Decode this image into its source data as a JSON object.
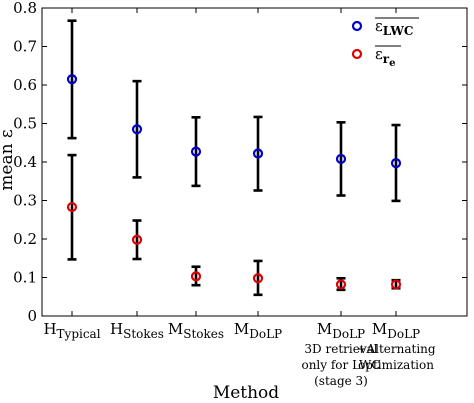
{
  "chart_data": {
    "type": "scatter",
    "title": "",
    "xlabel": "Method",
    "ylabel": "mean ε",
    "ylim": [
      0,
      0.8
    ],
    "yticks": [
      "0",
      "0.1",
      "0.2",
      "0.3",
      "0.4",
      "0.5",
      "0.6",
      "0.7",
      "0.8"
    ],
    "categories": [
      {
        "main": "H",
        "sub": "Typical",
        "note": []
      },
      {
        "main": "H",
        "sub": "Stokes",
        "note": []
      },
      {
        "main": "M",
        "sub": "Stokes",
        "note": []
      },
      {
        "main": "M",
        "sub": "DoLP",
        "note": []
      },
      {
        "main": "M",
        "sub": "DoLP",
        "note": [
          "3D retrieval",
          "only for LWC",
          "(stage 3)"
        ]
      },
      {
        "main": "M",
        "sub": "DoLP",
        "note": [
          "+Alternating",
          "optimization"
        ]
      }
    ],
    "series": [
      {
        "name": "ε̄ LWC",
        "legend_main": "ε",
        "legend_sub": "LWC",
        "color": "#0000cc",
        "values": [
          0.615,
          0.485,
          0.427,
          0.422,
          0.408,
          0.397
        ],
        "err_low": [
          0.462,
          0.36,
          0.338,
          0.326,
          0.313,
          0.299
        ],
        "err_high": [
          0.767,
          0.61,
          0.516,
          0.517,
          0.503,
          0.496
        ]
      },
      {
        "name": "ε̄ r_e",
        "legend_main": "ε",
        "legend_sub": "r",
        "legend_subsub": "e",
        "color": "#dd0000",
        "values": [
          0.283,
          0.198,
          0.103,
          0.098,
          0.082,
          0.082
        ],
        "err_low": [
          0.147,
          0.148,
          0.08,
          0.055,
          0.068,
          0.072
        ],
        "err_high": [
          0.418,
          0.248,
          0.128,
          0.143,
          0.098,
          0.093
        ]
      }
    ],
    "grid": false,
    "legend_position": "top-right"
  }
}
